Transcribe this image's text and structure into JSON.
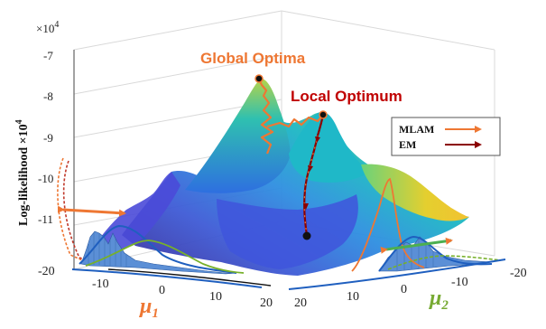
{
  "chart_data": {
    "type": "surface3d",
    "title": "",
    "exponent_label": "×10",
    "exponent_power": "4",
    "zlabel": "Log-likelihood ×10",
    "zlabel_power": "4",
    "zlim": [
      -11.7,
      -7
    ],
    "z_ticks": [
      "-7",
      "-8",
      "-9",
      "-10",
      "-11"
    ],
    "x_axis": {
      "label": "μ",
      "label_sub": "1",
      "range": [
        -20,
        20
      ],
      "ticks": [
        "-10",
        "0",
        "10",
        "20"
      ],
      "color": "#ee7733"
    },
    "y_axis": {
      "label": "μ",
      "label_sub": "2",
      "range": [
        -20,
        20
      ],
      "ticks": [
        "20",
        "10",
        "0",
        "-10",
        "-20"
      ],
      "color": "#77aa33"
    },
    "corner_tick": "-20",
    "surface_colormap": [
      "#3b2c98",
      "#3e5bd6",
      "#2e8ee0",
      "#1cb6c4",
      "#46c98a",
      "#b4d34a",
      "#f4d22b"
    ],
    "annotations": [
      {
        "text": "Global Optima",
        "color": "#ee7733"
      },
      {
        "text": "Local Optimum",
        "color": "#c00000"
      }
    ],
    "legend": {
      "position": "right",
      "entries": [
        {
          "name": "MLAM",
          "color": "#ee7733"
        },
        {
          "name": "EM",
          "color": "#8b0000"
        }
      ]
    },
    "series": [
      {
        "name": "MLAM",
        "description": "optimization path reaching the global optimum",
        "path": [
          [
            -6,
            9,
            -9.4
          ],
          [
            -6,
            7,
            -8.9
          ],
          [
            -6,
            6,
            -8.6
          ],
          [
            -5,
            6,
            -8.1
          ],
          [
            -5,
            5,
            -7.6
          ],
          [
            -1,
            3,
            -8.3
          ],
          [
            3,
            -1,
            -8.5
          ]
        ]
      },
      {
        "name": "EM",
        "description": "optimization path converging to the local optimum",
        "path": [
          [
            4,
            -4,
            -11.3
          ],
          [
            4,
            -3,
            -10.5
          ],
          [
            4,
            -2,
            -9.8
          ],
          [
            3,
            -1,
            -9.2
          ],
          [
            3,
            -1,
            -8.6
          ]
        ]
      }
    ]
  }
}
